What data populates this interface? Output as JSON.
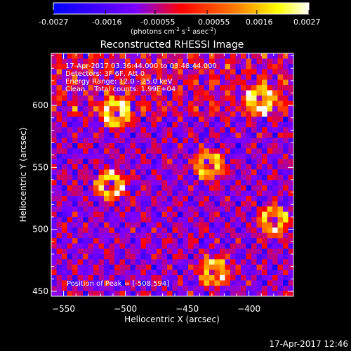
{
  "colorbar": {
    "ticks": [
      "-0.0027",
      "-0.0016",
      "-0.00055",
      "0.00055",
      "0.0016",
      "0.0027"
    ],
    "units_parts": [
      "(photons cm",
      "-2",
      " s",
      "-1",
      " asec",
      "-2",
      ")"
    ]
  },
  "chart_data": {
    "type": "heatmap",
    "title": "Reconstructed RHESSI Image",
    "xlabel": "Heliocentric X (arcsec)",
    "ylabel": "Heliocentric Y (arcsec)",
    "xlim": [
      -560,
      -364
    ],
    "ylim": [
      446,
      642
    ],
    "x_ticks": [
      -550,
      -500,
      -450,
      -400
    ],
    "y_ticks": [
      450,
      500,
      550,
      600
    ],
    "x_tick_labels": [
      "−550",
      "−500",
      "−450",
      "−400"
    ],
    "y_tick_labels": [
      "450",
      "500",
      "550",
      "600"
    ],
    "colorbar_range": [
      -0.0027,
      0.0027
    ],
    "colormap": [
      "#0000ff",
      "#7f00ff",
      "#ff0000",
      "#ff8000",
      "#ffff00",
      "#ffffff"
    ],
    "sources": [
      {
        "x": -508,
        "y": 594
      },
      {
        "x": -432,
        "y": 552
      },
      {
        "x": -512,
        "y": 536
      },
      {
        "x": -380,
        "y": 506
      },
      {
        "x": -428,
        "y": 466
      },
      {
        "x": -390,
        "y": 604
      }
    ],
    "peak": {
      "x": -508,
      "y": 594
    }
  },
  "annotations": [
    "17-Apr-2017 03:36:44.000 to 03:48:44.000",
    "Detectors: 3F 6F, Att 0",
    "Energy Range: 12.0 - 25.0 keV",
    "Clean    Total counts: 1.99E+04"
  ],
  "peak_label": "Position of Peak = [-508,594]",
  "timestamp": "17-Apr-2017 12:46"
}
